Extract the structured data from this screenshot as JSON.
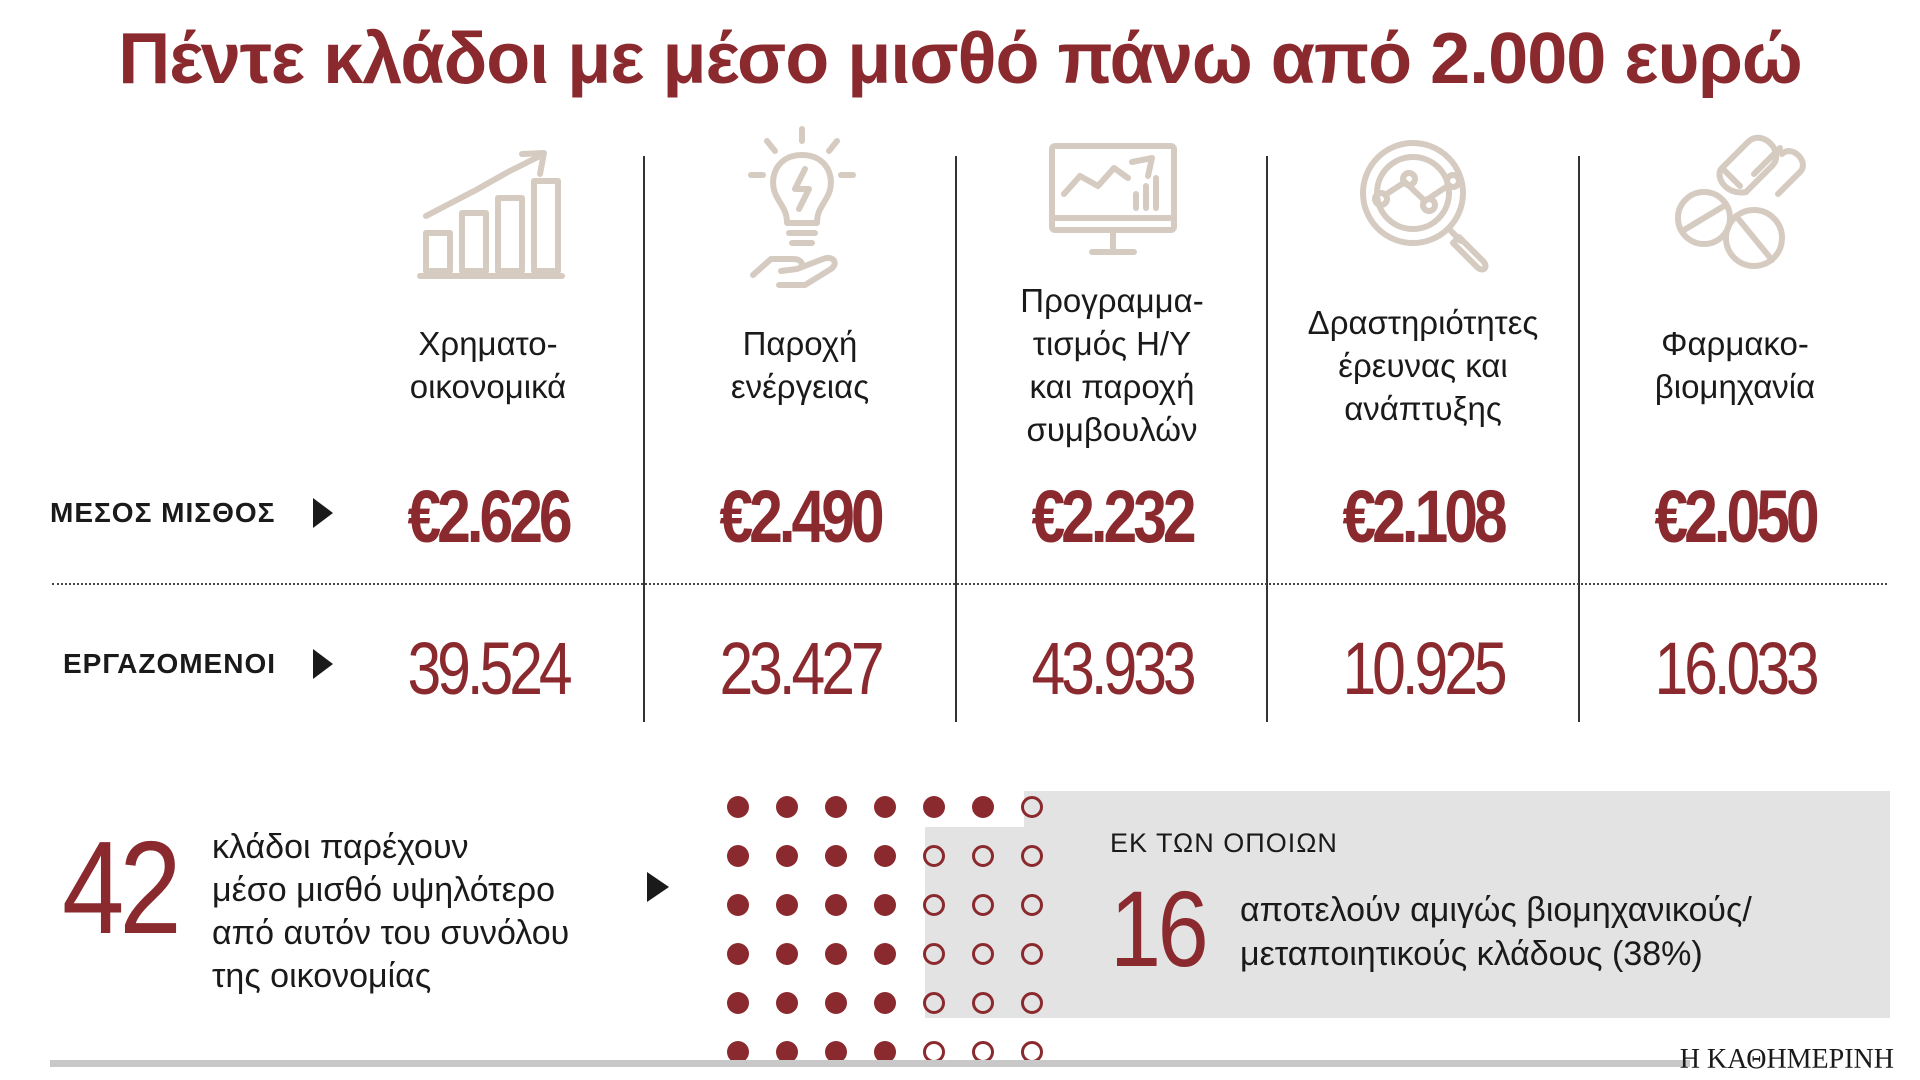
{
  "title": "Πέντε κλάδοι με μέσο μισθό πάνω από 2.000 ευρώ",
  "row_labels": {
    "salary": "ΜΕΣΟΣ ΜΙΣΘΟΣ",
    "employees": "ΕΡΓΑΖΟΜΕΝΟΙ"
  },
  "colors": {
    "accent": "#8b2a2e",
    "icon": "#d6cbc1",
    "grey_box": "#e3e3e3"
  },
  "chart_data": {
    "type": "table",
    "title": "Πέντε κλάδοι με μέσο μισθό πάνω από 2.000 ευρώ",
    "columns": [
      {
        "label_lines": [
          "Χρηματο-",
          "οικονομικά"
        ],
        "icon": "bar-growth-icon",
        "salary": "€2.626",
        "employees": "39.524"
      },
      {
        "label_lines": [
          "Παροχή",
          "ενέργειας"
        ],
        "icon": "lightbulb-hand-icon",
        "salary": "€2.490",
        "employees": "23.427"
      },
      {
        "label_lines": [
          "Προγραμμα-",
          "τισμός Η/Υ",
          "και παροχή",
          "συμβουλών"
        ],
        "icon": "monitor-chart-icon",
        "salary": "€2.232",
        "employees": "43.933"
      },
      {
        "label_lines": [
          "Δραστηριότητες",
          "έρευνας και",
          "ανάπτυξης"
        ],
        "icon": "magnifier-research-icon",
        "salary": "€2.108",
        "employees": "10.925"
      },
      {
        "label_lines": [
          "Φαρμακο-",
          "βιομηχανία"
        ],
        "icon": "pills-icon",
        "salary": "€2.050",
        "employees": "16.033"
      }
    ],
    "summary": {
      "total_sectors": 42,
      "total_text_lines": [
        "κλάδοι παρέχουν",
        "μέσο μισθό υψηλότερο",
        "από αυτόν του συνόλου",
        "της οικονομίας"
      ],
      "subset_intro": "ΕΚ ΤΩΝ ΟΠΟΙΩΝ",
      "industrial_sectors": 16,
      "subset_text_lines": [
        "αποτελούν αμιγώς βιομηχανικούς/",
        "μεταποιητικούς κλάδους (38%)"
      ],
      "filled_dots": 26,
      "outlined_dots": 16
    }
  },
  "footer": {
    "brand": "Η ΚΑΘΗΜΕΡΙΝΗ"
  }
}
